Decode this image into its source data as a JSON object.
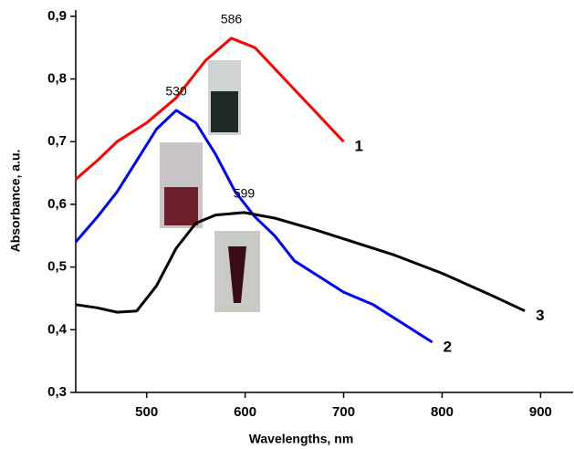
{
  "chart_data": {
    "type": "line",
    "xlabel": "Wavelengths, nm",
    "ylabel": "Absorbance, a.u.",
    "xlim": [
      428,
      933
    ],
    "ylim": [
      0.3,
      0.91
    ],
    "xticks": [
      500,
      600,
      700,
      800,
      900
    ],
    "yticks": [
      {
        "value": 0.3,
        "label": "0,3"
      },
      {
        "value": 0.4,
        "label": "0,4"
      },
      {
        "value": 0.5,
        "label": "0,5"
      },
      {
        "value": 0.6,
        "label": "0,6"
      },
      {
        "value": 0.7,
        "label": "0,7"
      },
      {
        "value": 0.8,
        "label": "0,8"
      },
      {
        "value": 0.9,
        "label": "0,9"
      }
    ],
    "series": [
      {
        "name": "1",
        "color": "#ff0000",
        "peak_label": "586",
        "x": [
          428,
          450,
          470,
          500,
          530,
          560,
          586,
          610,
          640,
          670,
          700
        ],
        "values": [
          0.64,
          0.67,
          0.7,
          0.73,
          0.77,
          0.83,
          0.865,
          0.85,
          0.8,
          0.75,
          0.7
        ]
      },
      {
        "name": "2",
        "color": "#0000ff",
        "peak_label": "530",
        "x": [
          428,
          450,
          470,
          490,
          510,
          530,
          550,
          570,
          590,
          610,
          630,
          650,
          670,
          700,
          730,
          760,
          790
        ],
        "values": [
          0.54,
          0.58,
          0.62,
          0.67,
          0.72,
          0.75,
          0.73,
          0.68,
          0.62,
          0.58,
          0.55,
          0.51,
          0.49,
          0.46,
          0.44,
          0.41,
          0.38
        ]
      },
      {
        "name": "3",
        "color": "#000000",
        "peak_label": "599",
        "x": [
          428,
          450,
          470,
          490,
          510,
          530,
          550,
          570,
          599,
          630,
          670,
          700,
          750,
          800,
          850,
          884
        ],
        "values": [
          0.44,
          0.435,
          0.428,
          0.43,
          0.47,
          0.53,
          0.57,
          0.583,
          0.587,
          0.578,
          0.56,
          0.545,
          0.52,
          0.49,
          0.455,
          0.43
        ]
      }
    ]
  }
}
